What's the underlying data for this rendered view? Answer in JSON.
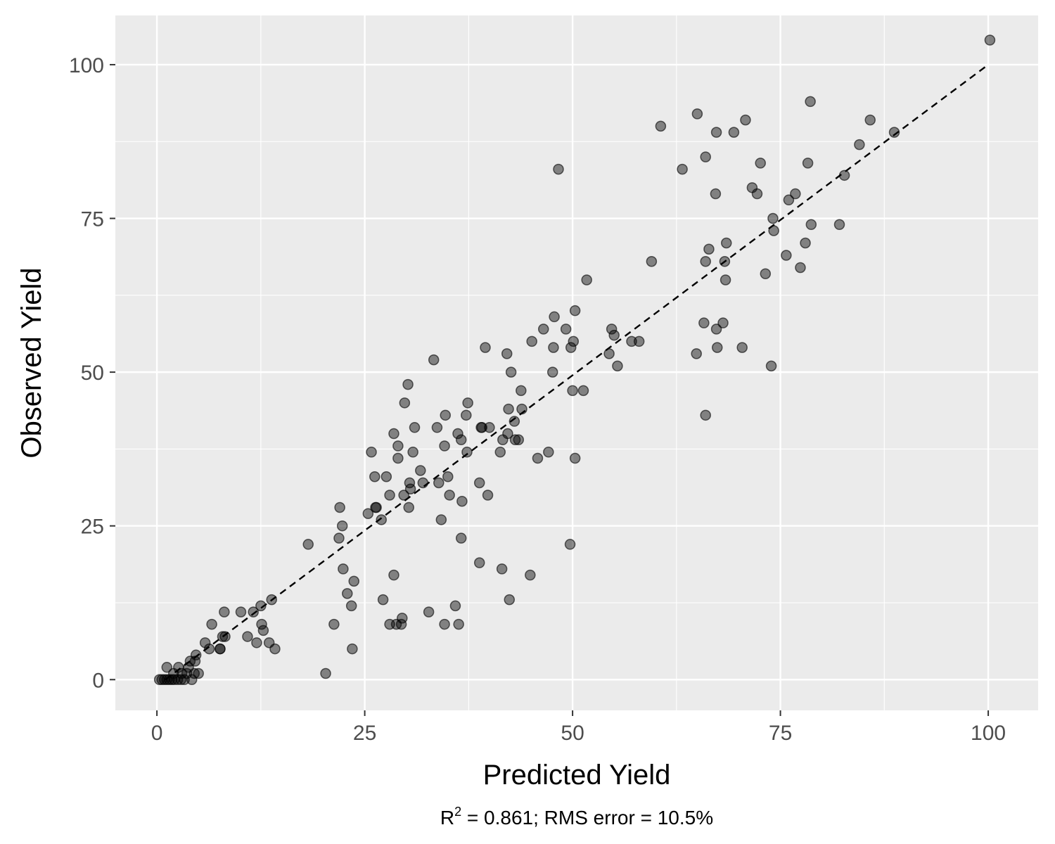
{
  "chart_data": {
    "type": "scatter",
    "xlabel": "Predicted Yield",
    "ylabel": "Observed Yield",
    "xlim": [
      -5,
      106
    ],
    "ylim": [
      -5,
      108
    ],
    "x_ticks": [
      0,
      25,
      50,
      75,
      100
    ],
    "y_ticks": [
      0,
      25,
      50,
      75,
      100
    ],
    "x_tick_labels": [
      "0",
      "25",
      "50",
      "75",
      "100"
    ],
    "y_tick_labels": [
      "0",
      "25",
      "50",
      "75",
      "100"
    ],
    "grid": true,
    "reference_line": {
      "style": "dashed",
      "points": [
        [
          1,
          0
        ],
        [
          100,
          100
        ]
      ]
    },
    "caption": {
      "prefix": "R",
      "superscript": "2",
      "text": "  =  0.861; RMS error =  10.5%"
    },
    "colors": {
      "panel": "#ebebeb",
      "grid": "#ffffff",
      "point": "#000000",
      "reference_line": "#000000"
    },
    "points": [
      [
        0.3,
        0
      ],
      [
        0.6,
        0
      ],
      [
        0.9,
        0
      ],
      [
        1.2,
        0
      ],
      [
        1.5,
        0
      ],
      [
        1.8,
        0
      ],
      [
        2.1,
        0
      ],
      [
        2.5,
        0
      ],
      [
        2.9,
        0
      ],
      [
        3.3,
        0
      ],
      [
        1.2,
        2
      ],
      [
        2.0,
        1
      ],
      [
        2.6,
        2
      ],
      [
        3.0,
        1
      ],
      [
        3.6,
        1
      ],
      [
        3.8,
        2
      ],
      [
        4.0,
        3
      ],
      [
        4.5,
        1
      ],
      [
        4.6,
        3
      ],
      [
        4.7,
        4
      ],
      [
        4.2,
        0
      ],
      [
        5.0,
        1
      ],
      [
        5.8,
        6
      ],
      [
        6.3,
        5
      ],
      [
        6.6,
        9
      ],
      [
        7.6,
        5
      ],
      [
        7.6,
        5
      ],
      [
        7.9,
        7
      ],
      [
        8.2,
        7
      ],
      [
        8.1,
        11
      ],
      [
        10.1,
        11
      ],
      [
        10.9,
        7
      ],
      [
        11.6,
        11
      ],
      [
        12.0,
        6
      ],
      [
        12.5,
        12
      ],
      [
        12.6,
        9
      ],
      [
        12.8,
        8
      ],
      [
        13.5,
        6
      ],
      [
        13.8,
        13
      ],
      [
        14.2,
        5
      ],
      [
        18.2,
        22
      ],
      [
        20.3,
        1
      ],
      [
        21.3,
        9
      ],
      [
        21.9,
        23
      ],
      [
        22.0,
        28
      ],
      [
        22.3,
        25
      ],
      [
        22.4,
        18
      ],
      [
        22.9,
        14
      ],
      [
        23.4,
        12
      ],
      [
        23.5,
        5
      ],
      [
        23.7,
        16
      ],
      [
        25.4,
        27
      ],
      [
        25.8,
        37
      ],
      [
        26.2,
        33
      ],
      [
        26.3,
        28
      ],
      [
        26.4,
        28
      ],
      [
        27.0,
        26
      ],
      [
        27.2,
        13
      ],
      [
        27.6,
        33
      ],
      [
        28.0,
        30
      ],
      [
        28.0,
        9
      ],
      [
        28.5,
        40
      ],
      [
        28.5,
        17
      ],
      [
        28.8,
        9
      ],
      [
        29.0,
        38
      ],
      [
        29.0,
        36
      ],
      [
        29.4,
        9
      ],
      [
        29.5,
        10
      ],
      [
        29.7,
        30
      ],
      [
        29.8,
        45
      ],
      [
        30.2,
        48
      ],
      [
        30.3,
        28
      ],
      [
        30.4,
        32
      ],
      [
        30.5,
        31
      ],
      [
        30.8,
        37
      ],
      [
        31.0,
        41
      ],
      [
        31.7,
        34
      ],
      [
        32.0,
        32
      ],
      [
        32.7,
        11
      ],
      [
        33.3,
        52
      ],
      [
        33.7,
        41
      ],
      [
        33.9,
        32
      ],
      [
        34.2,
        26
      ],
      [
        34.6,
        9
      ],
      [
        34.6,
        38
      ],
      [
        34.7,
        43
      ],
      [
        35.0,
        33
      ],
      [
        35.2,
        30
      ],
      [
        35.9,
        12
      ],
      [
        36.2,
        40
      ],
      [
        36.3,
        9
      ],
      [
        36.6,
        39
      ],
      [
        36.6,
        23
      ],
      [
        36.7,
        29
      ],
      [
        37.2,
        43
      ],
      [
        37.3,
        37
      ],
      [
        37.4,
        45
      ],
      [
        38.8,
        19
      ],
      [
        38.8,
        32
      ],
      [
        39.0,
        41
      ],
      [
        39.1,
        41
      ],
      [
        39.5,
        54
      ],
      [
        39.8,
        30
      ],
      [
        40.0,
        41
      ],
      [
        41.3,
        37
      ],
      [
        41.5,
        18
      ],
      [
        41.6,
        39
      ],
      [
        42.1,
        53
      ],
      [
        42.2,
        40
      ],
      [
        42.3,
        44
      ],
      [
        42.4,
        13
      ],
      [
        42.6,
        50
      ],
      [
        43.0,
        42
      ],
      [
        43.1,
        39
      ],
      [
        43.5,
        39
      ],
      [
        43.8,
        47
      ],
      [
        43.9,
        44
      ],
      [
        44.9,
        17
      ],
      [
        45.1,
        55
      ],
      [
        45.8,
        36
      ],
      [
        46.5,
        57
      ],
      [
        47.1,
        37
      ],
      [
        47.6,
        50
      ],
      [
        47.7,
        54
      ],
      [
        47.8,
        59
      ],
      [
        48.3,
        83
      ],
      [
        49.2,
        57
      ],
      [
        49.7,
        22
      ],
      [
        49.8,
        54
      ],
      [
        50.0,
        47
      ],
      [
        50.1,
        55
      ],
      [
        50.3,
        36
      ],
      [
        50.3,
        60
      ],
      [
        51.3,
        47
      ],
      [
        51.7,
        65
      ],
      [
        54.4,
        53
      ],
      [
        54.7,
        57
      ],
      [
        55.0,
        56
      ],
      [
        55.4,
        51
      ],
      [
        57.1,
        55
      ],
      [
        58.0,
        55
      ],
      [
        59.5,
        68
      ],
      [
        60.6,
        90
      ],
      [
        63.2,
        83
      ],
      [
        64.9,
        53
      ],
      [
        65.0,
        92
      ],
      [
        65.8,
        58
      ],
      [
        66.0,
        85
      ],
      [
        66.0,
        68
      ],
      [
        66.0,
        43
      ],
      [
        66.4,
        70
      ],
      [
        67.2,
        79
      ],
      [
        67.3,
        89
      ],
      [
        67.3,
        57
      ],
      [
        67.4,
        54
      ],
      [
        68.1,
        58
      ],
      [
        68.3,
        68
      ],
      [
        68.4,
        65
      ],
      [
        68.5,
        71
      ],
      [
        69.4,
        89
      ],
      [
        70.4,
        54
      ],
      [
        70.8,
        91
      ],
      [
        71.6,
        80
      ],
      [
        72.2,
        79
      ],
      [
        72.6,
        84
      ],
      [
        73.2,
        66
      ],
      [
        73.9,
        51
      ],
      [
        74.1,
        75
      ],
      [
        74.2,
        73
      ],
      [
        75.7,
        69
      ],
      [
        76.0,
        78
      ],
      [
        76.8,
        79
      ],
      [
        77.4,
        67
      ],
      [
        78.0,
        71
      ],
      [
        78.3,
        84
      ],
      [
        78.6,
        94
      ],
      [
        78.7,
        74
      ],
      [
        82.1,
        74
      ],
      [
        82.7,
        82
      ],
      [
        84.5,
        87
      ],
      [
        85.8,
        91
      ],
      [
        88.7,
        89
      ],
      [
        100.2,
        104
      ]
    ]
  }
}
